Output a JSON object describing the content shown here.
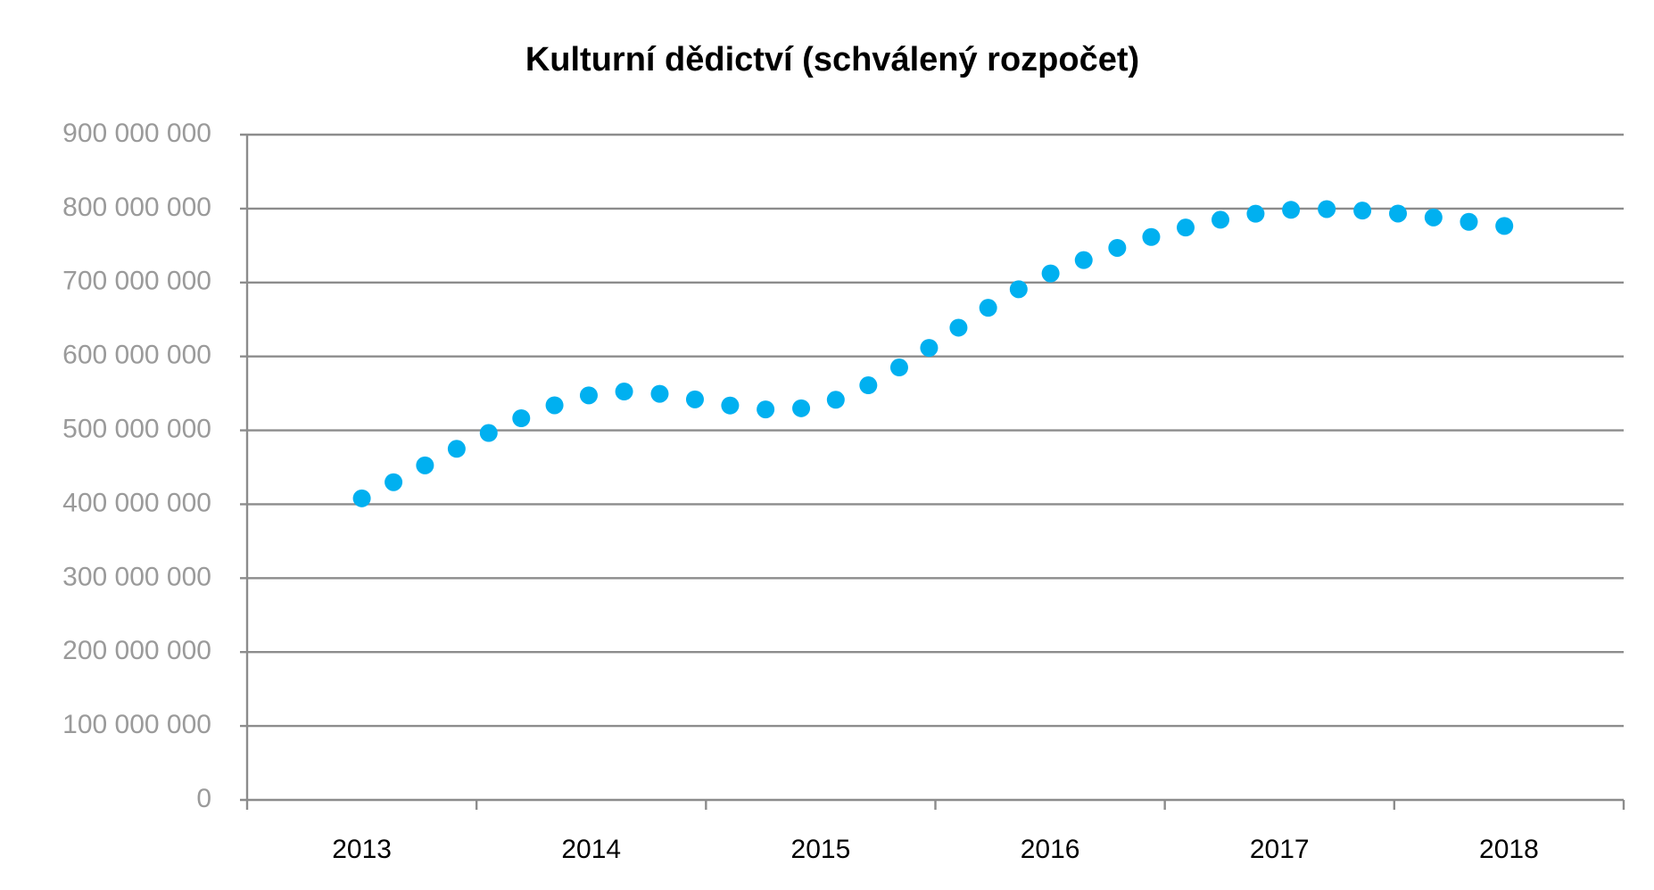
{
  "chart_data": {
    "type": "line",
    "title": "Kulturní dědictví (schválený rozpočet)",
    "categories": [
      "2013",
      "2014",
      "2015",
      "2016",
      "2017",
      "2018"
    ],
    "series": [
      {
        "name": "Kulturní dědictví",
        "color": "#00b0f0",
        "values": [
          408000000,
          548000000,
          535000000,
          712000000,
          797000000,
          776000000
        ]
      }
    ],
    "ylim": [
      0,
      900000000
    ],
    "yticks": [
      0,
      {
        "value": 100000000,
        "label": "100 000 000"
      },
      {
        "value": 200000000,
        "label": "200 000 000"
      },
      {
        "value": 300000000,
        "label": "300 000 000"
      },
      {
        "value": 400000000,
        "label": "400 000 000"
      },
      {
        "value": 500000000,
        "label": "500 000 000"
      },
      {
        "value": 600000000,
        "label": "600 000 000"
      },
      {
        "value": 700000000,
        "label": "700 000 000"
      },
      {
        "value": 800000000,
        "label": "800 000 000"
      },
      {
        "value": 900000000,
        "label": "900 000 000"
      }
    ],
    "grid": true,
    "smooth": true,
    "line_style": "dotted"
  }
}
